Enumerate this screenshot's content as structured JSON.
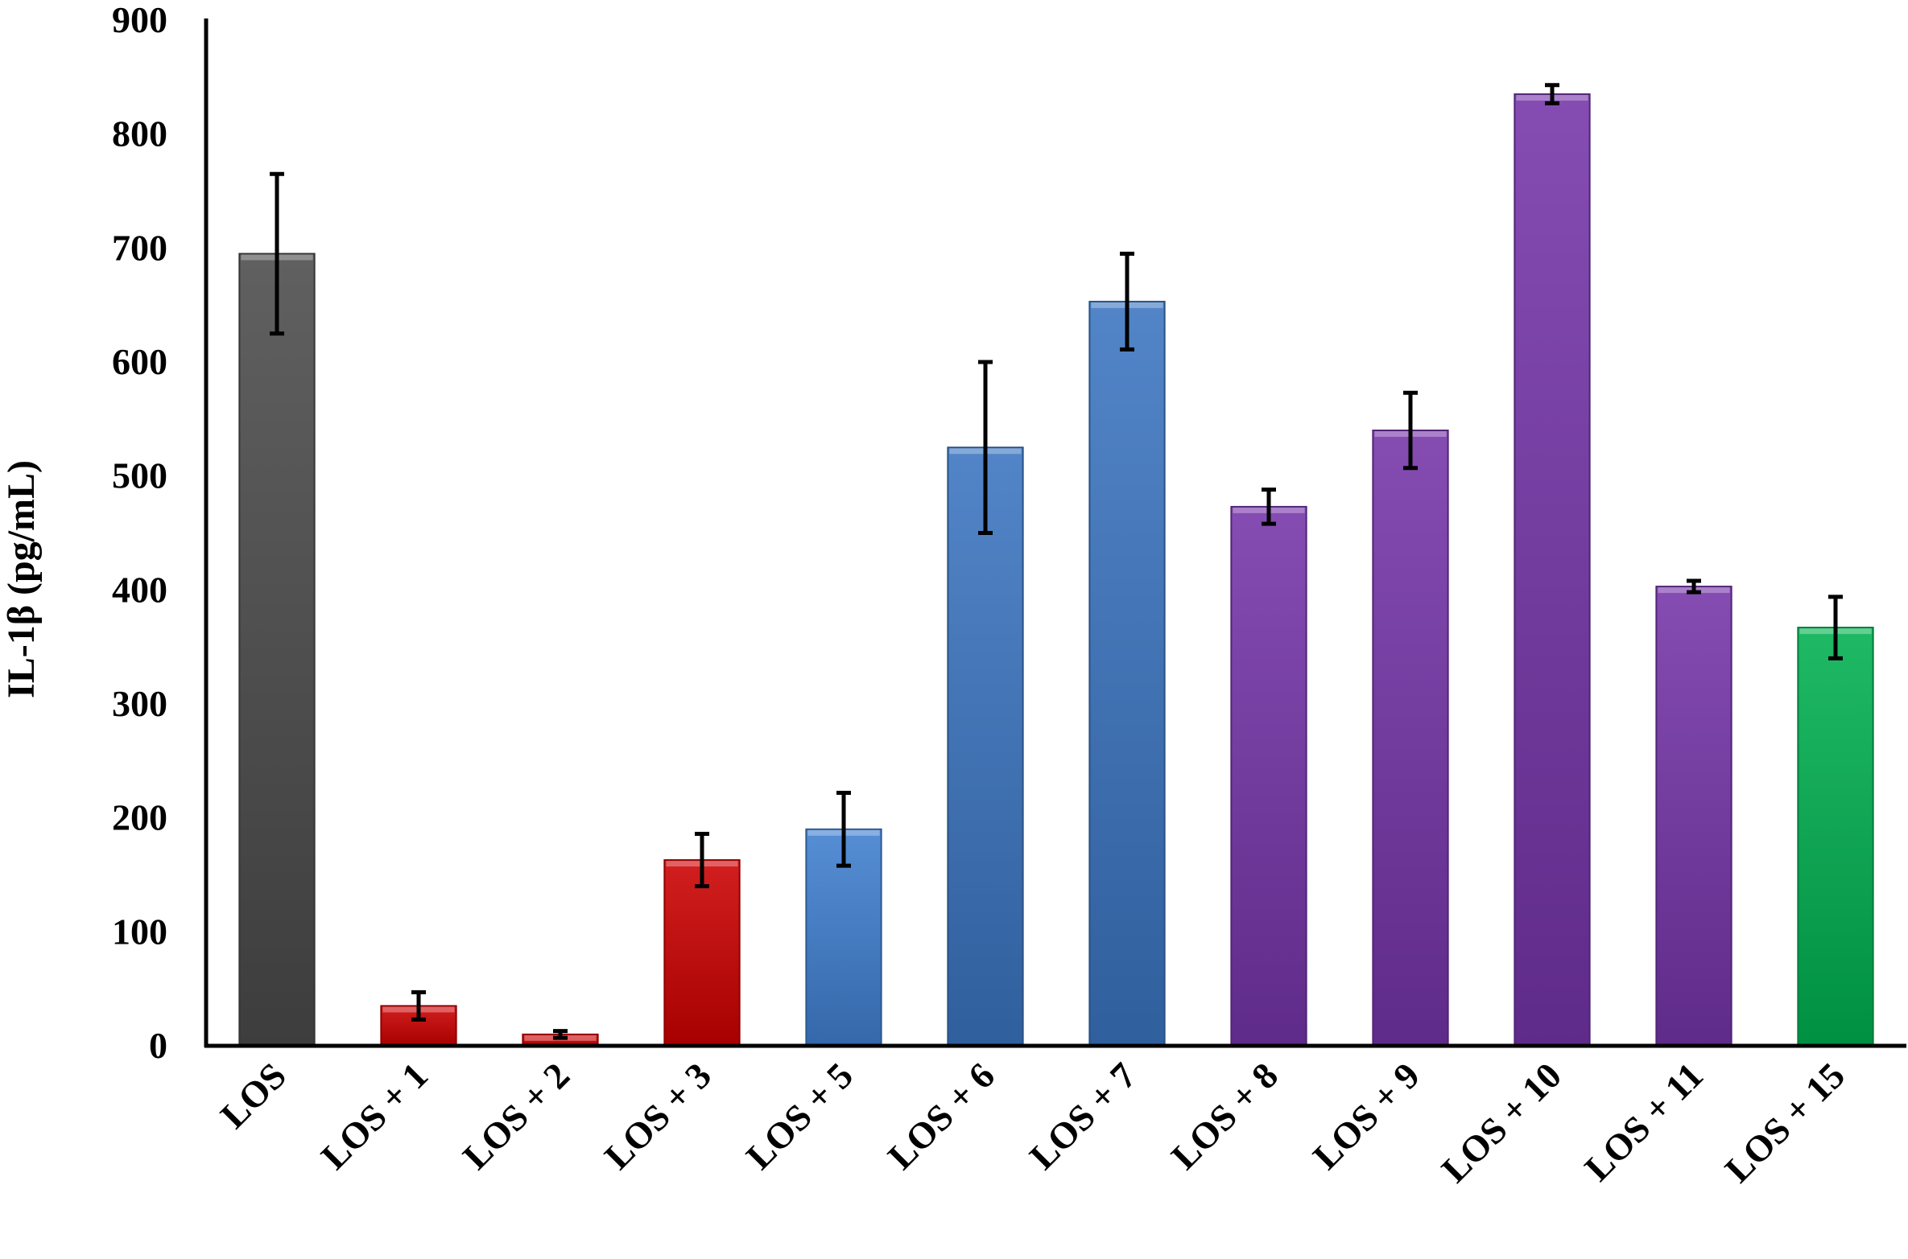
{
  "chart_data": {
    "type": "bar",
    "title": "",
    "xlabel": "",
    "ylabel": "IL-1β (pg/mL)",
    "ylim": [
      0,
      900
    ],
    "yticks": [
      0,
      100,
      200,
      300,
      400,
      500,
      600,
      700,
      800,
      900
    ],
    "grid": false,
    "legend": "none",
    "categories": [
      "LOS",
      "LOS + 1",
      "LOS + 2",
      "LOS + 3",
      "LOS + 5",
      "LOS + 6",
      "LOS + 7",
      "LOS + 8",
      "LOS + 9",
      "LOS + 10",
      "LOS + 11",
      "LOS + 15"
    ],
    "values": [
      695,
      35,
      10,
      163,
      190,
      525,
      653,
      473,
      540,
      835,
      403,
      367
    ],
    "errors": [
      70,
      12,
      3,
      23,
      32,
      75,
      42,
      15,
      33,
      8,
      5,
      27
    ],
    "colors": [
      "#4a4a4a",
      "#cc0000",
      "#cc0000",
      "#cc0000",
      "#3f7fcf",
      "#3a74c0",
      "#3a74c0",
      "#7434a8",
      "#7434a8",
      "#7434a8",
      "#7434a8",
      "#00b050"
    ]
  }
}
